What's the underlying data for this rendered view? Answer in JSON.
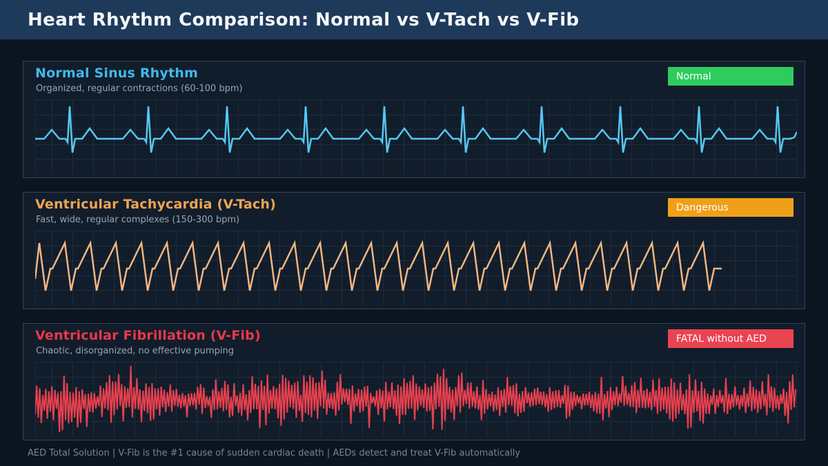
{
  "header": {
    "title": "Heart Rhythm Comparison: Normal vs V-Tach vs V-Fib"
  },
  "theme": {
    "page_bg": "#0c1420",
    "header_bg": "#1e3a5a",
    "header_text": "#f4f7f9",
    "panel_bg": "#121d2b",
    "panel_border": "#30455c",
    "grid_line": "#1d2d3f",
    "subtitle_text": "#97a5b4",
    "footer_text": "#73859a"
  },
  "chart_data": [
    {
      "type": "line",
      "title": "Normal Sinus Rhythm",
      "subtitle": "Organized, regular contractions (60-100 bpm)",
      "badge": "Normal",
      "badge_color": "#2ecc5e",
      "accent": "#41b9e8",
      "trace_color": "#55c8f2",
      "trace_width": 2.5,
      "grid": true,
      "xlabel": "",
      "ylabel": "",
      "waveform": {
        "kind": "cycles",
        "cycles": 10,
        "cycle_width": 114,
        "baseline": 57,
        "extent": 1104,
        "cycle_keypoints": [
          [
            0,
            0
          ],
          [
            13,
            0
          ],
          [
            24,
            13
          ],
          [
            35,
            0
          ],
          [
            44,
            0
          ],
          [
            47,
            -5
          ],
          [
            50,
            47
          ],
          [
            54,
            -20
          ],
          [
            58,
            0
          ],
          [
            68,
            0
          ],
          [
            79,
            15
          ],
          [
            90,
            0
          ],
          [
            113,
            0
          ]
        ],
        "tail": [
          [
            1100,
            2
          ],
          [
            1104,
            10
          ]
        ]
      }
    },
    {
      "type": "line",
      "title": "Ventricular Tachycardia (V-Tach)",
      "subtitle": "Fast, wide, regular complexes (150-300 bpm)",
      "badge": "Dangerous",
      "badge_color": "#f0a018",
      "accent": "#f0a552",
      "trace_color": "#f2b680",
      "trace_width": 2.5,
      "grid": true,
      "xlabel": "",
      "ylabel": "",
      "waveform": {
        "kind": "cycles",
        "cycles": 27,
        "cycle_width": 37,
        "baseline": 52,
        "extent": 997,
        "lead_in": [
          [
            0,
            -18
          ]
        ],
        "cycle_keypoints": [
          [
            6,
            34
          ],
          [
            15,
            -35
          ],
          [
            22,
            -3
          ],
          [
            25,
            -3
          ]
        ],
        "tail": [
          [
            995,
            -3
          ]
        ]
      }
    },
    {
      "type": "line",
      "title": "Ventricular Fibrillation (V-Fib)",
      "subtitle": "Chaotic, disorganized, no effective pumping",
      "badge": "FATAL without AED",
      "badge_color": "#ea4352",
      "accent": "#e8394a",
      "trace_color": "#e8404e",
      "trace_width": 2,
      "grid": true,
      "xlabel": "",
      "ylabel": "",
      "waveform": {
        "kind": "noise",
        "step": 2.2,
        "center": 55,
        "amp_base": 14,
        "amp_var": 28,
        "spike_chance": 0.08,
        "spike_extra": 16,
        "seed": 42,
        "extent": 1104,
        "clamp": [
          6,
          102
        ]
      }
    }
  ],
  "footer": {
    "text": "AED Total Solution  |  V-Fib is the #1 cause of sudden cardiac death  |  AEDs detect and treat V-Fib automatically"
  }
}
